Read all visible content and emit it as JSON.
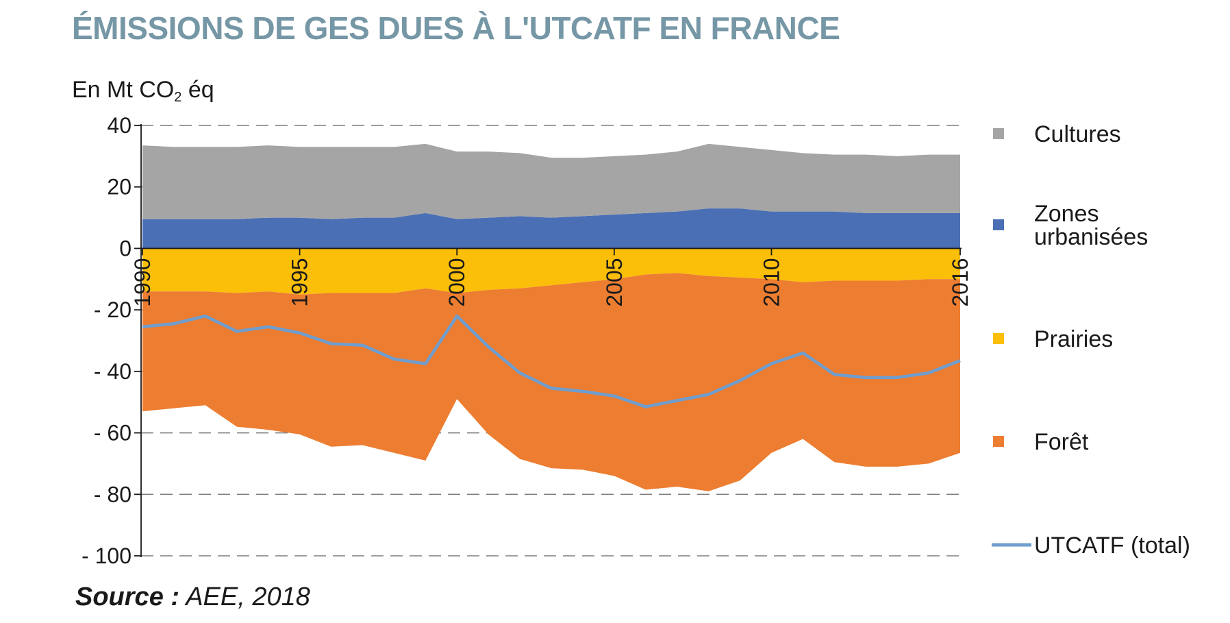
{
  "header": {
    "title": "ÉMISSIONS DE GES DUES À L'UTCATF EN FRANCE",
    "unit_prefix": "En Mt CO",
    "unit_sub": "2",
    "unit_suffix": " éq"
  },
  "footer": {
    "source_label": "Source :",
    "source_text": " AEE, 2018"
  },
  "chart_data": {
    "type": "area",
    "x": [
      1990,
      1991,
      1992,
      1993,
      1994,
      1995,
      1996,
      1997,
      1998,
      1999,
      2000,
      2001,
      2002,
      2003,
      2004,
      2005,
      2006,
      2007,
      2008,
      2009,
      2010,
      2011,
      2012,
      2013,
      2014,
      2015,
      2016
    ],
    "x_tick_labels": [
      "1990",
      "1995",
      "2000",
      "2005",
      "2010",
      "2016"
    ],
    "x_tick_values": [
      1990,
      1995,
      2000,
      2005,
      2010,
      2016
    ],
    "y_tick_labels": [
      "40",
      "20",
      "0",
      "- 20",
      "- 40",
      "- 60",
      "- 80",
      "- 100"
    ],
    "y_tick_values": [
      40,
      20,
      0,
      -20,
      -40,
      -60,
      -80,
      -100
    ],
    "ylim": [
      -100,
      40
    ],
    "grid": "dashed horizontal",
    "legend_position": "right",
    "stacking": "positive series stacked above 0, negative series stacked below 0",
    "series": [
      {
        "name": "Zones urbanisées",
        "name_lines": [
          "Zones",
          "urbanisées"
        ],
        "color": "#4a6fb5",
        "kind": "area",
        "values": [
          9.5,
          9.5,
          9.5,
          9.5,
          10,
          10,
          9.5,
          10,
          10,
          11.5,
          9.5,
          10,
          10.5,
          10,
          10.5,
          11,
          11.5,
          12,
          13,
          13,
          12,
          12,
          12,
          11.5,
          11.5,
          11.5,
          11.5
        ]
      },
      {
        "name": "Cultures",
        "name_lines": [
          "Cultures"
        ],
        "color": "#a5a5a5",
        "kind": "area",
        "values": [
          24,
          23.5,
          23.5,
          23.5,
          23.5,
          23,
          23.5,
          23,
          23,
          22.5,
          22,
          21.5,
          20.5,
          19.5,
          19,
          19,
          19,
          19.5,
          21,
          20,
          20,
          19,
          18.5,
          19,
          18.5,
          19,
          19
        ]
      },
      {
        "name": "Prairies",
        "name_lines": [
          "Prairies"
        ],
        "color": "#fbbf0a",
        "kind": "area",
        "values": [
          -14,
          -14,
          -14,
          -14.5,
          -14,
          -15,
          -14.5,
          -14.5,
          -14.5,
          -13,
          -14.5,
          -13.5,
          -13,
          -12,
          -11,
          -10,
          -8.5,
          -8,
          -9,
          -9.5,
          -10,
          -11,
          -10.5,
          -10.5,
          -10.5,
          -10,
          -10
        ]
      },
      {
        "name": "Forêt",
        "name_lines": [
          "Forêt"
        ],
        "color": "#ed7d31",
        "kind": "area",
        "values": [
          -39,
          -38,
          -37,
          -43.5,
          -45,
          -45.5,
          -50,
          -49.5,
          -52,
          -56,
          -34.5,
          -47,
          -55.5,
          -59.5,
          -61,
          -64,
          -70,
          -69.5,
          -70,
          -66,
          -56.5,
          -51,
          -59,
          -60.5,
          -60.5,
          -60,
          -56.5
        ]
      },
      {
        "name": "UTCATF (total)",
        "name_lines": [
          "UTCATF (total)"
        ],
        "color": "#6f9ecf",
        "kind": "line",
        "values": [
          -25.5,
          -24.5,
          -22,
          -27,
          -25.5,
          -27.5,
          -31,
          -31.5,
          -36,
          -37.5,
          -22,
          -32,
          -40.5,
          -45.5,
          -46.5,
          -48,
          -51.5,
          -49.5,
          -47.5,
          -43,
          -37.5,
          -34,
          -41,
          -42,
          -42,
          -40.5,
          -36.5
        ]
      }
    ]
  }
}
